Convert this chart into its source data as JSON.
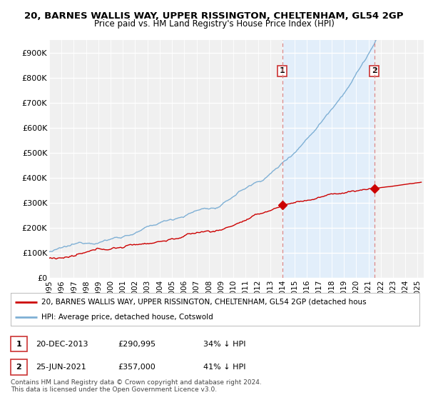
{
  "title1": "20, BARNES WALLIS WAY, UPPER RISSINGTON, CHELTENHAM, GL54 2GP",
  "title2": "Price paid vs. HM Land Registry's House Price Index (HPI)",
  "ylabel_ticks": [
    "£0",
    "£100K",
    "£200K",
    "£300K",
    "£400K",
    "£500K",
    "£600K",
    "£700K",
    "£800K",
    "£900K"
  ],
  "ytick_values": [
    0,
    100000,
    200000,
    300000,
    400000,
    500000,
    600000,
    700000,
    800000,
    900000
  ],
  "ylim": [
    0,
    950000
  ],
  "xlim_start": 1995.0,
  "xlim_end": 2025.5,
  "legend_line1": "20, BARNES WALLIS WAY, UPPER RISSINGTON, CHELTENHAM, GL54 2GP (detached hous",
  "legend_line2": "HPI: Average price, detached house, Cotswold",
  "marker1_date": "20-DEC-2013",
  "marker1_price": "£290,995",
  "marker1_hpi": "34% ↓ HPI",
  "marker1_x": 2013.97,
  "marker1_y": 290995,
  "marker2_date": "25-JUN-2021",
  "marker2_price": "£357,000",
  "marker2_hpi": "41% ↓ HPI",
  "marker2_x": 2021.48,
  "marker2_y": 357000,
  "footer": "Contains HM Land Registry data © Crown copyright and database right 2024.\nThis data is licensed under the Open Government Licence v3.0.",
  "line_color_red": "#cc0000",
  "line_color_blue": "#7fb0d5",
  "vline_color": "#dd8888",
  "shade_color": "#ddeeff",
  "background_color": "#ffffff",
  "plot_bg_color": "#f0f0f0",
  "xtick_years": [
    1995,
    1996,
    1997,
    1998,
    1999,
    2000,
    2001,
    2002,
    2003,
    2004,
    2005,
    2006,
    2007,
    2008,
    2009,
    2010,
    2011,
    2012,
    2013,
    2014,
    2015,
    2016,
    2017,
    2018,
    2019,
    2020,
    2021,
    2022,
    2023,
    2024,
    2025
  ]
}
